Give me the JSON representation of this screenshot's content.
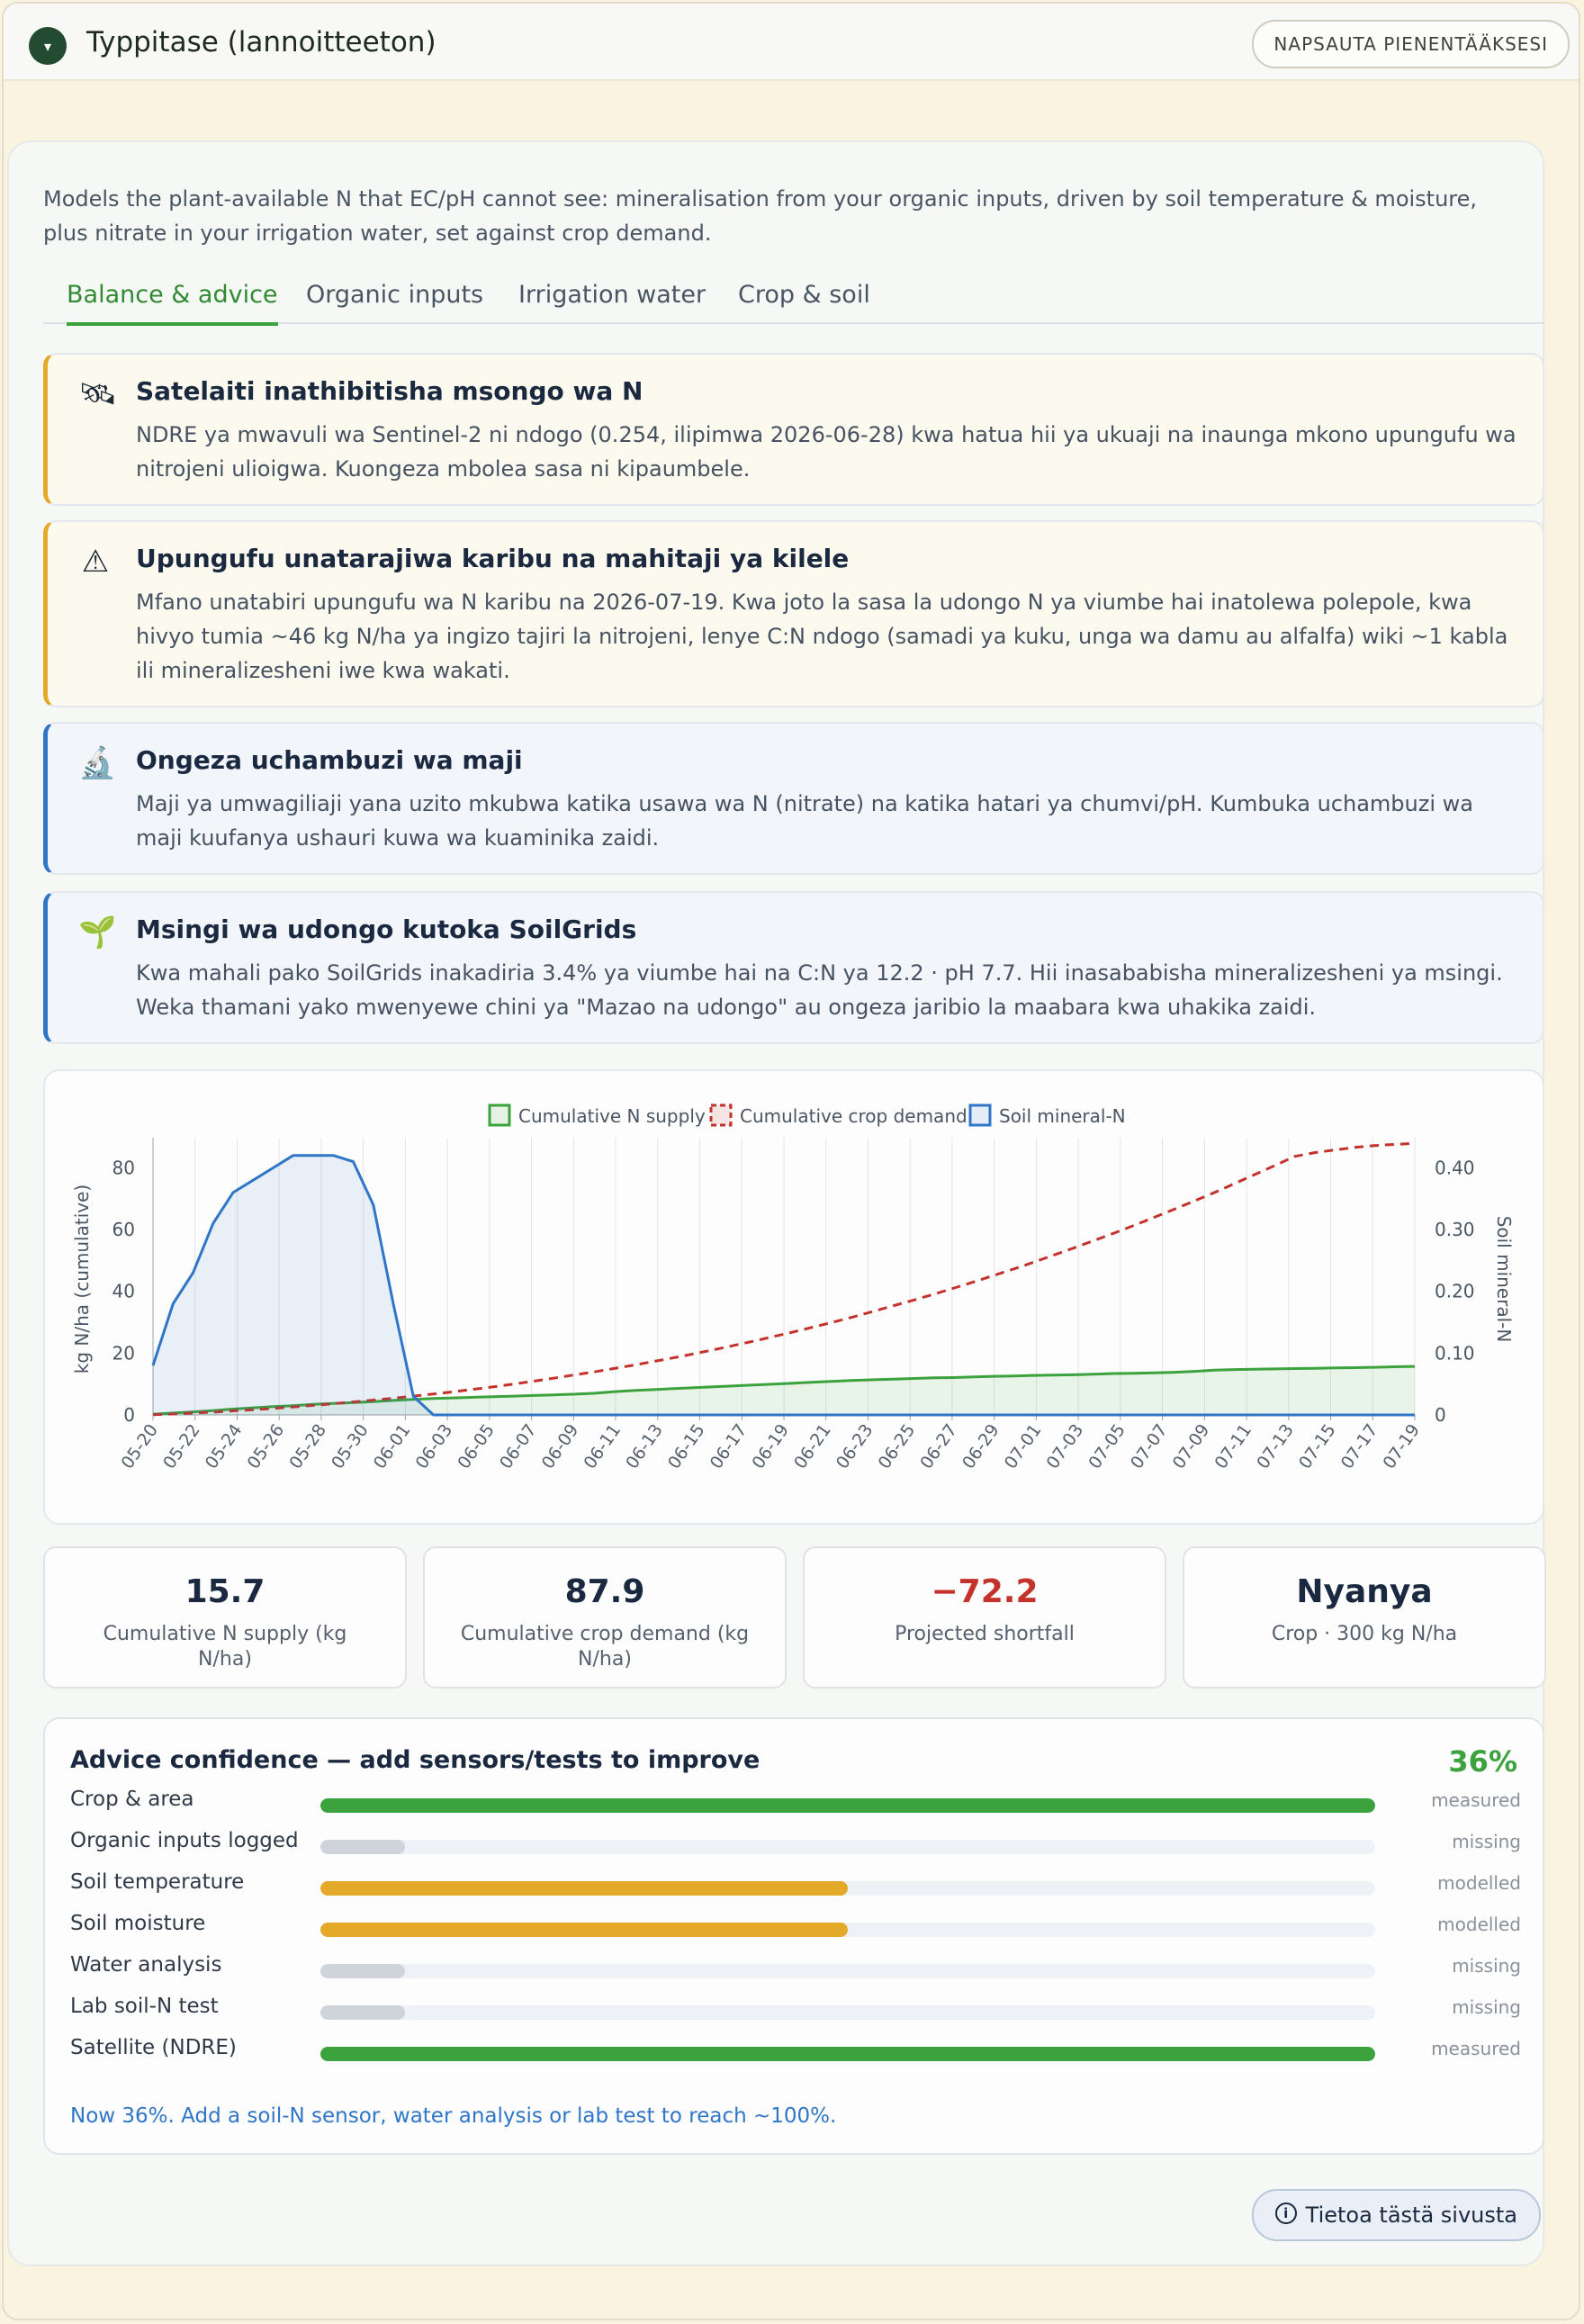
{
  "header": {
    "title": "Typpitase (lannoitteeton)",
    "collapse_label": "NAPSAUTA PIENENTÄÄKSESI",
    "toggle_glyph": "▾"
  },
  "intro": "Models the plant-available N that EC/pH cannot see: mineralisation from your organic inputs, driven by soil temperature & moisture, plus nitrate in your irrigation water, set against crop demand.",
  "tabs": [
    {
      "label": "Balance & advice",
      "active": true
    },
    {
      "label": "Organic inputs",
      "active": false
    },
    {
      "label": "Irrigation water",
      "active": false
    },
    {
      "label": "Crop & soil",
      "active": false
    }
  ],
  "alerts": [
    {
      "icon": "satellite-icon",
      "glyph": "🛰",
      "title": "Satelaiti inathibitisha msongo wa N",
      "body": "NDRE ya mwavuli wa Sentinel-2 ni ndogo (0.254, ilipimwa 2026-06-28) kwa hatua hii ya ukuaji na inaunga mkono upungufu wa nitrojeni ulioigwa. Kuongeza mbolea sasa ni kipaumbele.",
      "severity": "warning"
    },
    {
      "icon": "warning-icon",
      "glyph": "⚠",
      "title": "Upungufu unatarajiwa karibu na mahitaji ya kilele",
      "body": "Mfano unatabiri upungufu wa N karibu na 2026-07-19. Kwa joto la sasa la udongo N ya viumbe hai inatolewa polepole, kwa hivyo tumia ~46 kg N/ha ya ingizo tajiri la nitrojeni, lenye C:N ndogo (samadi ya kuku, unga wa damu au alfalfa) wiki ~1 kabla ili mineralizesheni iwe kwa wakati.",
      "severity": "warning"
    },
    {
      "icon": "microscope-icon",
      "glyph": "🔬",
      "title": "Ongeza uchambuzi wa maji",
      "body": "Maji ya umwagiliaji yana uzito mkubwa katika usawa wa N (nitrate) na katika hatari ya chumvi/pH. Kumbuka uchambuzi wa maji kuufanya ushauri kuwa wa kuaminika zaidi.",
      "severity": "info"
    },
    {
      "icon": "seedling-icon",
      "glyph": "🌱",
      "title": "Msingi wa udongo kutoka SoilGrids",
      "body": "Kwa mahali pako SoilGrids inakadiria 3.4% ya viumbe hai na C:N ya 12.2 · pH 7.7. Hii inasababisha mineralizesheni ya msingi. Weka thamani yako mwenyewe chini ya \"Mazao na udongo\" au ongeza jaribio la maabara kwa uhakika zaidi.",
      "severity": "info"
    }
  ],
  "chart_data": {
    "type": "line",
    "legend_position": "top-center",
    "grid": true,
    "legend": [
      "Cumulative N supply",
      "Cumulative crop demand",
      "Soil mineral-N"
    ],
    "ylabel_left": "kg N/ha (cumulative)",
    "ylabel_right": "Soil mineral-N",
    "yticks_left": [
      "0",
      "20",
      "40",
      "60",
      "80"
    ],
    "yticks_right": [
      "0",
      "0.10",
      "0.20",
      "0.30",
      "0.40"
    ],
    "ylim_left": [
      0,
      88
    ],
    "ylim_right": [
      0,
      0.44
    ],
    "xticks": [
      "05-20",
      "05-22",
      "05-24",
      "05-26",
      "05-28",
      "05-30",
      "06-01",
      "06-03",
      "06-05",
      "06-07",
      "06-09",
      "06-11",
      "06-13",
      "06-15",
      "06-17",
      "06-19",
      "06-21",
      "06-23",
      "06-25",
      "06-27",
      "06-29",
      "07-01",
      "07-03",
      "07-05",
      "07-07",
      "07-09",
      "07-11",
      "07-13",
      "07-15",
      "07-17",
      "07-19"
    ],
    "series": [
      {
        "name": "Cumulative N supply",
        "axis": "left",
        "color": "#3ca23d",
        "dash": "solid",
        "fill": true,
        "values": [
          0.2,
          0.6,
          1.0,
          1.4,
          1.9,
          2.3,
          2.7,
          3.0,
          3.4,
          3.7,
          4.0,
          4.3,
          4.7,
          5.0,
          5.3,
          5.5,
          5.7,
          5.9,
          6.1,
          6.3,
          6.5,
          6.7,
          7.0,
          7.5,
          7.9,
          8.2,
          8.5,
          8.8,
          9.1,
          9.4,
          9.7,
          10.0,
          10.3,
          10.6,
          10.9,
          11.2,
          11.4,
          11.6,
          11.8,
          12.0,
          12.1,
          12.3,
          12.5,
          12.6,
          12.8,
          12.9,
          13.0,
          13.2,
          13.4,
          13.5,
          13.6,
          13.8,
          14.1,
          14.5,
          14.7,
          14.8,
          14.9,
          15.0,
          15.1,
          15.2,
          15.3,
          15.4,
          15.6,
          15.7
        ]
      },
      {
        "name": "Cumulative crop demand",
        "axis": "left",
        "color": "#c4332b",
        "dash": "dashed",
        "fill": false,
        "values": [
          0.1,
          0.3,
          0.6,
          0.9,
          1.3,
          1.7,
          2.1,
          2.6,
          3.1,
          3.6,
          4.2,
          4.8,
          5.4,
          6.1,
          6.8,
          7.5,
          8.3,
          9.1,
          10.0,
          10.9,
          11.9,
          12.9,
          13.9,
          15.0,
          16.1,
          17.3,
          18.5,
          19.8,
          21.1,
          22.5,
          23.9,
          25.4,
          26.9,
          28.5,
          30.1,
          31.8,
          33.6,
          35.4,
          37.2,
          39.1,
          41.1,
          43.1,
          45.2,
          47.3,
          49.5,
          51.8,
          54.1,
          56.5,
          58.9,
          61.4,
          64.0,
          66.6,
          69.3,
          72.0,
          74.9,
          77.8,
          80.7,
          83.7,
          84.9,
          85.8,
          86.6,
          87.2,
          87.6,
          87.9
        ]
      },
      {
        "name": "Soil mineral-N",
        "axis": "right",
        "color": "#2f76c8",
        "dash": "solid",
        "fill": true,
        "values": [
          0.08,
          0.18,
          0.23,
          0.31,
          0.36,
          0.38,
          0.4,
          0.42,
          0.42,
          0.42,
          0.41,
          0.34,
          0.18,
          0.03,
          0,
          0,
          0,
          0,
          0,
          0,
          0,
          0,
          0,
          0,
          0,
          0,
          0,
          0,
          0,
          0,
          0,
          0,
          0,
          0,
          0,
          0,
          0,
          0,
          0,
          0,
          0,
          0,
          0,
          0,
          0,
          0,
          0,
          0,
          0,
          0,
          0,
          0,
          0,
          0,
          0,
          0,
          0,
          0,
          0,
          0,
          0,
          0,
          0,
          0
        ]
      }
    ]
  },
  "stats": [
    {
      "value": "15.7",
      "label": "Cumulative N supply (kg N/ha)",
      "negative": false
    },
    {
      "value": "87.9",
      "label": "Cumulative crop demand (kg N/ha)",
      "negative": false
    },
    {
      "value": "−72.2",
      "label": "Projected shortfall",
      "negative": true
    },
    {
      "value": "Nyanya",
      "label": "Crop · 300 kg N/ha",
      "negative": false
    }
  ],
  "confidence": {
    "title": "Advice confidence — add sensors/tests to improve",
    "percent": "36%",
    "rows": [
      {
        "label": "Crop & area",
        "status": "measured",
        "fraction": 1.0,
        "color": "#3ca23d"
      },
      {
        "label": "Organic inputs logged",
        "status": "missing",
        "fraction": 0.08,
        "color": "#cfd4db"
      },
      {
        "label": "Soil temperature",
        "status": "modelled",
        "fraction": 0.5,
        "color": "#e5a92a"
      },
      {
        "label": "Soil moisture",
        "status": "modelled",
        "fraction": 0.5,
        "color": "#e5a92a"
      },
      {
        "label": "Water analysis",
        "status": "missing",
        "fraction": 0.08,
        "color": "#cfd4db"
      },
      {
        "label": "Lab soil-N test",
        "status": "missing",
        "fraction": 0.08,
        "color": "#cfd4db"
      },
      {
        "label": "Satellite (NDRE)",
        "status": "measured",
        "fraction": 1.0,
        "color": "#3ca23d"
      }
    ],
    "footer": "Now 36%. Add a soil-N sensor, water analysis or lab test to reach ~100%."
  },
  "about_label": "Tietoa tästä sivusta",
  "about_glyph": "i"
}
